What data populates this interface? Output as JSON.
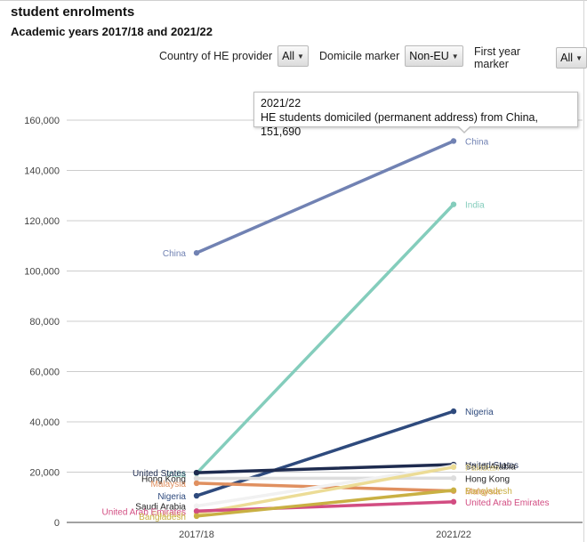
{
  "header": {
    "title": "student enrolments",
    "subtitle": "Academic years 2017/18 and 2021/22"
  },
  "filters": [
    {
      "label": "Country of HE provider",
      "value": "All"
    },
    {
      "label": "Domicile marker",
      "value": "Non-EU"
    },
    {
      "label": "First year marker",
      "value": "All"
    }
  ],
  "tooltip": {
    "line1": "2021/22",
    "line2": "HE students domiciled (permanent address) from China, 151,690"
  },
  "chart_data": {
    "type": "line",
    "categories": [
      "2017/18",
      "2021/22"
    ],
    "ylim": [
      0,
      160000
    ],
    "yticks": [
      "0",
      "20,000",
      "40,000",
      "60,000",
      "80,000",
      "100,000",
      "120,000",
      "140,000",
      "160,000"
    ],
    "ytick_values": [
      0,
      20000,
      40000,
      60000,
      80000,
      100000,
      120000,
      140000,
      160000
    ],
    "grid": true,
    "series": [
      {
        "name": "China",
        "values": [
          107200,
          151690
        ],
        "color": "#7182b3"
      },
      {
        "name": "India",
        "values": [
          19500,
          126500
        ],
        "color": "#84cdbc"
      },
      {
        "name": "Nigeria",
        "values": [
          10600,
          44200
        ],
        "color": "#2e4a7d"
      },
      {
        "name": "United States",
        "values": [
          19800,
          23000
        ],
        "color": "#1e2b4f"
      },
      {
        "name": "Hong Kong",
        "values": [
          17500,
          17600
        ],
        "color": "#dddddd"
      },
      {
        "name": "Malaysia",
        "values": [
          15600,
          12500
        ],
        "color": "#e09060"
      },
      {
        "name": "Saudi Arabia",
        "values": [
          6500,
          22500
        ],
        "color": "#f1f1f1"
      },
      {
        "name": "Pakistan",
        "values": [
          3500,
          22000
        ],
        "color": "#ecdc96"
      },
      {
        "name": "United Arab Emirates",
        "values": [
          4500,
          8200
        ],
        "color": "#d24d82"
      },
      {
        "name": "Bangladesh",
        "values": [
          2500,
          12800
        ],
        "color": "#c9b043"
      }
    ]
  }
}
